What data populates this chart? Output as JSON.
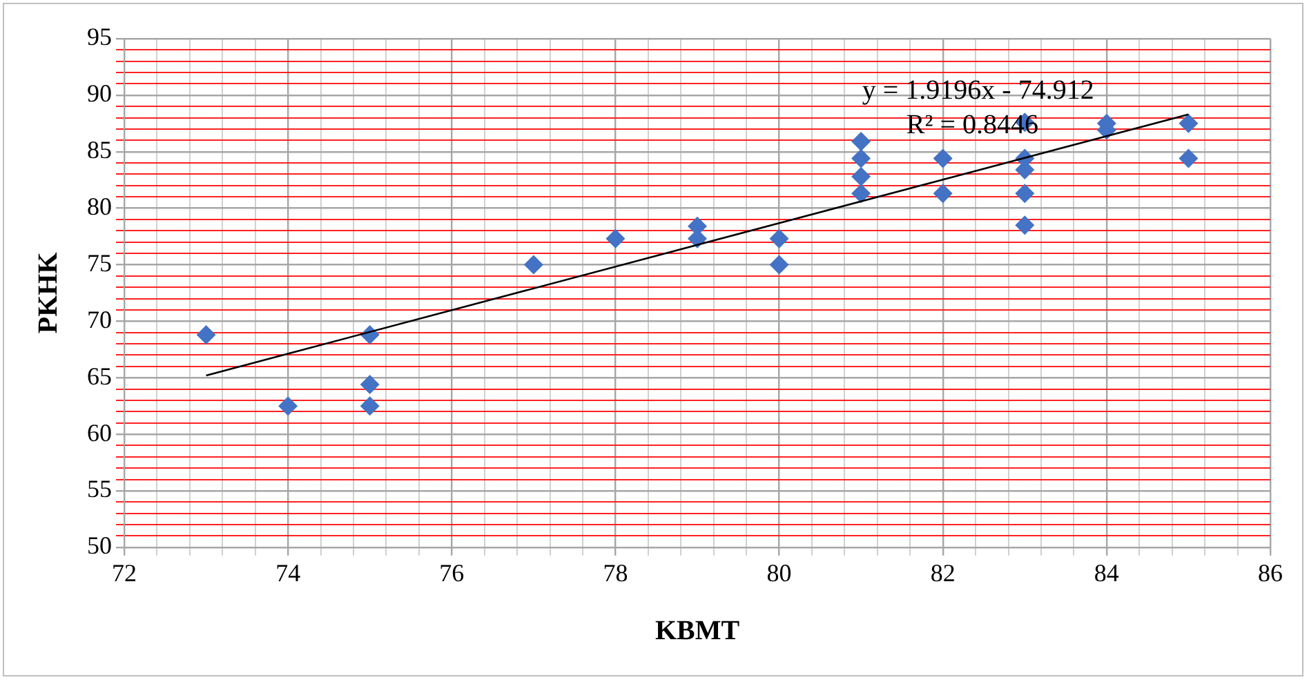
{
  "chart_data": {
    "type": "scatter",
    "xlabel": "KBMT",
    "ylabel": "PKHK",
    "marker": "diamond",
    "grid": true,
    "legend": false,
    "xlim": [
      72,
      86
    ],
    "ylim": [
      50,
      95
    ],
    "xticks": [
      72,
      {
        "value": 72.4,
        "label": null
      },
      {
        "value": 72.8,
        "label": null
      },
      {
        "value": 73.2,
        "label": null
      },
      {
        "value": 73.6,
        "label": null
      },
      74,
      {
        "value": 74.4,
        "label": null
      },
      {
        "value": 74.8,
        "label": null
      },
      {
        "value": 75.2,
        "label": null
      },
      {
        "value": 75.6,
        "label": null
      },
      76,
      {
        "value": 76.4,
        "label": null
      },
      {
        "value": 76.8,
        "label": null
      },
      {
        "value": 77.2,
        "label": null
      },
      {
        "value": 77.6,
        "label": null
      },
      78,
      {
        "value": 78.4,
        "label": null
      },
      {
        "value": 78.8,
        "label": null
      },
      {
        "value": 79.2,
        "label": null
      },
      {
        "value": 79.6,
        "label": null
      },
      80,
      {
        "value": 80.4,
        "label": null
      },
      {
        "value": 80.8,
        "label": null
      },
      {
        "value": 81.2,
        "label": null
      },
      {
        "value": 81.6,
        "label": null
      },
      82,
      {
        "value": 82.4,
        "label": null
      },
      {
        "value": 82.8,
        "label": null
      },
      {
        "value": 83.2,
        "label": null
      },
      {
        "value": 83.6,
        "label": null
      },
      84,
      {
        "value": 84.4,
        "label": null
      },
      {
        "value": 84.8,
        "label": null
      },
      {
        "value": 85.2,
        "label": null
      },
      {
        "value": 85.6,
        "label": null
      },
      86
    ],
    "yticks": [
      50,
      {
        "value": 51,
        "label": null
      },
      {
        "value": 52,
        "label": null
      },
      {
        "value": 53,
        "label": null
      },
      {
        "value": 54,
        "label": null
      },
      55,
      {
        "value": 56,
        "label": null
      },
      {
        "value": 57,
        "label": null
      },
      {
        "value": 58,
        "label": null
      },
      {
        "value": 59,
        "label": null
      },
      60,
      {
        "value": 61,
        "label": null
      },
      {
        "value": 62,
        "label": null
      },
      {
        "value": 63,
        "label": null
      },
      {
        "value": 64,
        "label": null
      },
      65,
      {
        "value": 66,
        "label": null
      },
      {
        "value": 67,
        "label": null
      },
      {
        "value": 68,
        "label": null
      },
      {
        "value": 69,
        "label": null
      },
      70,
      {
        "value": 71,
        "label": null
      },
      {
        "value": 72,
        "label": null
      },
      {
        "value": 73,
        "label": null
      },
      {
        "value": 74,
        "label": null
      },
      75,
      {
        "value": 76,
        "label": null
      },
      {
        "value": 77,
        "label": null
      },
      {
        "value": 78,
        "label": null
      },
      {
        "value": 79,
        "label": null
      },
      80,
      {
        "value": 81,
        "label": null
      },
      {
        "value": 82,
        "label": null
      },
      {
        "value": 83,
        "label": null
      },
      {
        "value": 84,
        "label": null
      },
      85,
      {
        "value": 86,
        "label": null
      },
      {
        "value": 87,
        "label": null
      },
      {
        "value": 88,
        "label": null
      },
      {
        "value": 89,
        "label": null
      },
      90,
      {
        "value": 91,
        "label": null
      },
      {
        "value": 92,
        "label": null
      },
      {
        "value": 93,
        "label": null
      },
      {
        "value": 94,
        "label": null
      },
      95
    ],
    "series": [
      {
        "color": "#4472c4",
        "x": [
          73,
          74,
          75,
          75,
          75,
          77,
          78,
          79,
          79,
          80,
          80,
          81,
          81,
          81,
          81,
          82,
          82,
          83,
          83,
          83,
          83,
          83,
          84,
          84,
          85,
          85
        ],
        "values": [
          68.8,
          62.5,
          68.8,
          64.4,
          62.5,
          75,
          77.3,
          78.4,
          77.3,
          77.3,
          75,
          85.9,
          84.4,
          82.8,
          81.3,
          84.4,
          81.3,
          87.6,
          84.4,
          83.4,
          81.3,
          78.5,
          87.5,
          86.9,
          87.5,
          84.4
        ]
      },
      {
        "type": "line",
        "color": "#000000",
        "marker": "none",
        "x": [
          73,
          85
        ],
        "values": [
          65.2,
          88.3
        ]
      }
    ],
    "annotations": [
      "y = 1.9196x - 74.912",
      "R² = 0.8446"
    ]
  }
}
